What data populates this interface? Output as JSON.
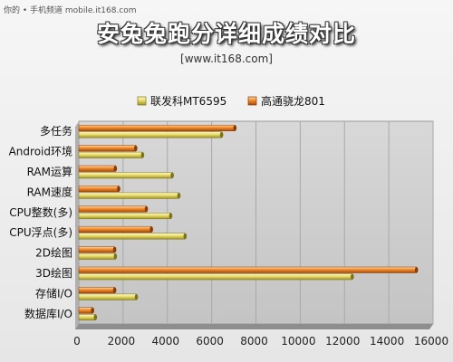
{
  "watermark": "你的 • 手机频道 mobile.it168.com",
  "chart_data": {
    "type": "bar",
    "orientation": "horizontal",
    "title": "安兔兔跑分详细成绩对比",
    "subtitle": "[www.it168.com]",
    "categories": [
      "多任务",
      "Android环境",
      "RAM运算",
      "RAM速度",
      "CPU整数(多)",
      "CPU浮点(多)",
      "2D绘图",
      "3D绘图",
      "存储I/O",
      "数据库I/O"
    ],
    "series": [
      {
        "name": "高通骁龙801",
        "color": "#e8721a",
        "values": [
          7050,
          2570,
          1650,
          1800,
          3050,
          3280,
          1620,
          15250,
          1620,
          620
        ]
      },
      {
        "name": "联发科MT6595",
        "color": "#e6dc5a",
        "values": [
          6450,
          2880,
          4220,
          4520,
          4150,
          4800,
          1650,
          12350,
          2600,
          750
        ]
      }
    ],
    "legend_order": [
      "联发科MT6595",
      "高通骁龙801"
    ],
    "legend_placement": "top",
    "xlim": [
      0,
      16000
    ],
    "xticks": [
      0,
      2000,
      4000,
      6000,
      8000,
      10000,
      12000,
      14000,
      16000
    ],
    "grid": true
  }
}
